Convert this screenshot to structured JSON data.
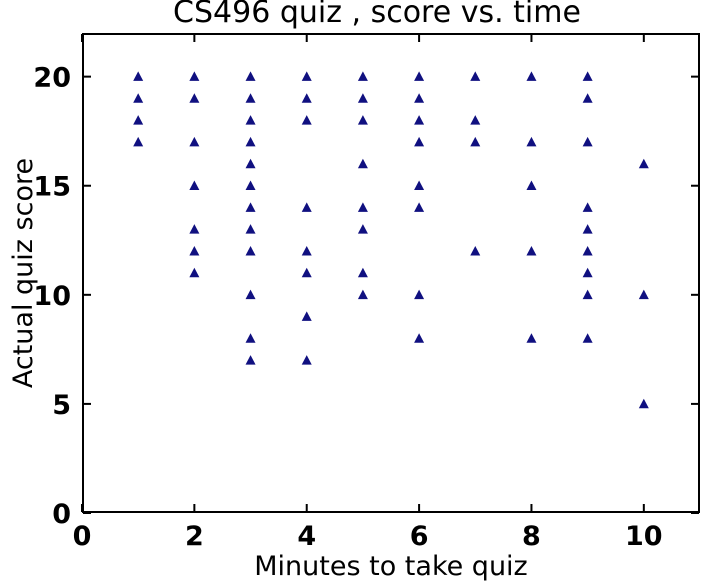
{
  "chart_data": {
    "type": "scatter",
    "title": "CS496 quiz , score vs. time",
    "xlabel": "Minutes to take quiz",
    "ylabel": "Actual quiz score",
    "xlim": [
      0,
      11
    ],
    "ylim": [
      0,
      22
    ],
    "x_ticks": [
      0,
      2,
      4,
      6,
      8,
      10
    ],
    "y_ticks": [
      0,
      5,
      10,
      15,
      20
    ],
    "grid": false,
    "legend": "none",
    "marker": "triangle-up",
    "marker_color": "#101080",
    "axis_color": "#000000",
    "background_color": "#ffffff",
    "points": [
      [
        1,
        20
      ],
      [
        1,
        19
      ],
      [
        1,
        18
      ],
      [
        1,
        17
      ],
      [
        2,
        20
      ],
      [
        2,
        19
      ],
      [
        2,
        17
      ],
      [
        2,
        15
      ],
      [
        2,
        13
      ],
      [
        2,
        12
      ],
      [
        2,
        11
      ],
      [
        3,
        20
      ],
      [
        3,
        19
      ],
      [
        3,
        18
      ],
      [
        3,
        17
      ],
      [
        3,
        16
      ],
      [
        3,
        15
      ],
      [
        3,
        14
      ],
      [
        3,
        13
      ],
      [
        3,
        12
      ],
      [
        3,
        10
      ],
      [
        3,
        8
      ],
      [
        3,
        7
      ],
      [
        4,
        20
      ],
      [
        4,
        19
      ],
      [
        4,
        18
      ],
      [
        4,
        14
      ],
      [
        4,
        12
      ],
      [
        4,
        11
      ],
      [
        4,
        9
      ],
      [
        4,
        7
      ],
      [
        5,
        20
      ],
      [
        5,
        19
      ],
      [
        5,
        18
      ],
      [
        5,
        16
      ],
      [
        5,
        14
      ],
      [
        5,
        13
      ],
      [
        5,
        11
      ],
      [
        5,
        10
      ],
      [
        6,
        20
      ],
      [
        6,
        19
      ],
      [
        6,
        18
      ],
      [
        6,
        17
      ],
      [
        6,
        15
      ],
      [
        6,
        14
      ],
      [
        6,
        10
      ],
      [
        6,
        8
      ],
      [
        7,
        20
      ],
      [
        7,
        18
      ],
      [
        7,
        17
      ],
      [
        7,
        12
      ],
      [
        8,
        20
      ],
      [
        8,
        17
      ],
      [
        8,
        15
      ],
      [
        8,
        12
      ],
      [
        8,
        8
      ],
      [
        9,
        20
      ],
      [
        9,
        19
      ],
      [
        9,
        17
      ],
      [
        9,
        14
      ],
      [
        9,
        13
      ],
      [
        9,
        12
      ],
      [
        9,
        11
      ],
      [
        9,
        10
      ],
      [
        9,
        8
      ],
      [
        10,
        16
      ],
      [
        10,
        10
      ],
      [
        10,
        5
      ]
    ]
  }
}
